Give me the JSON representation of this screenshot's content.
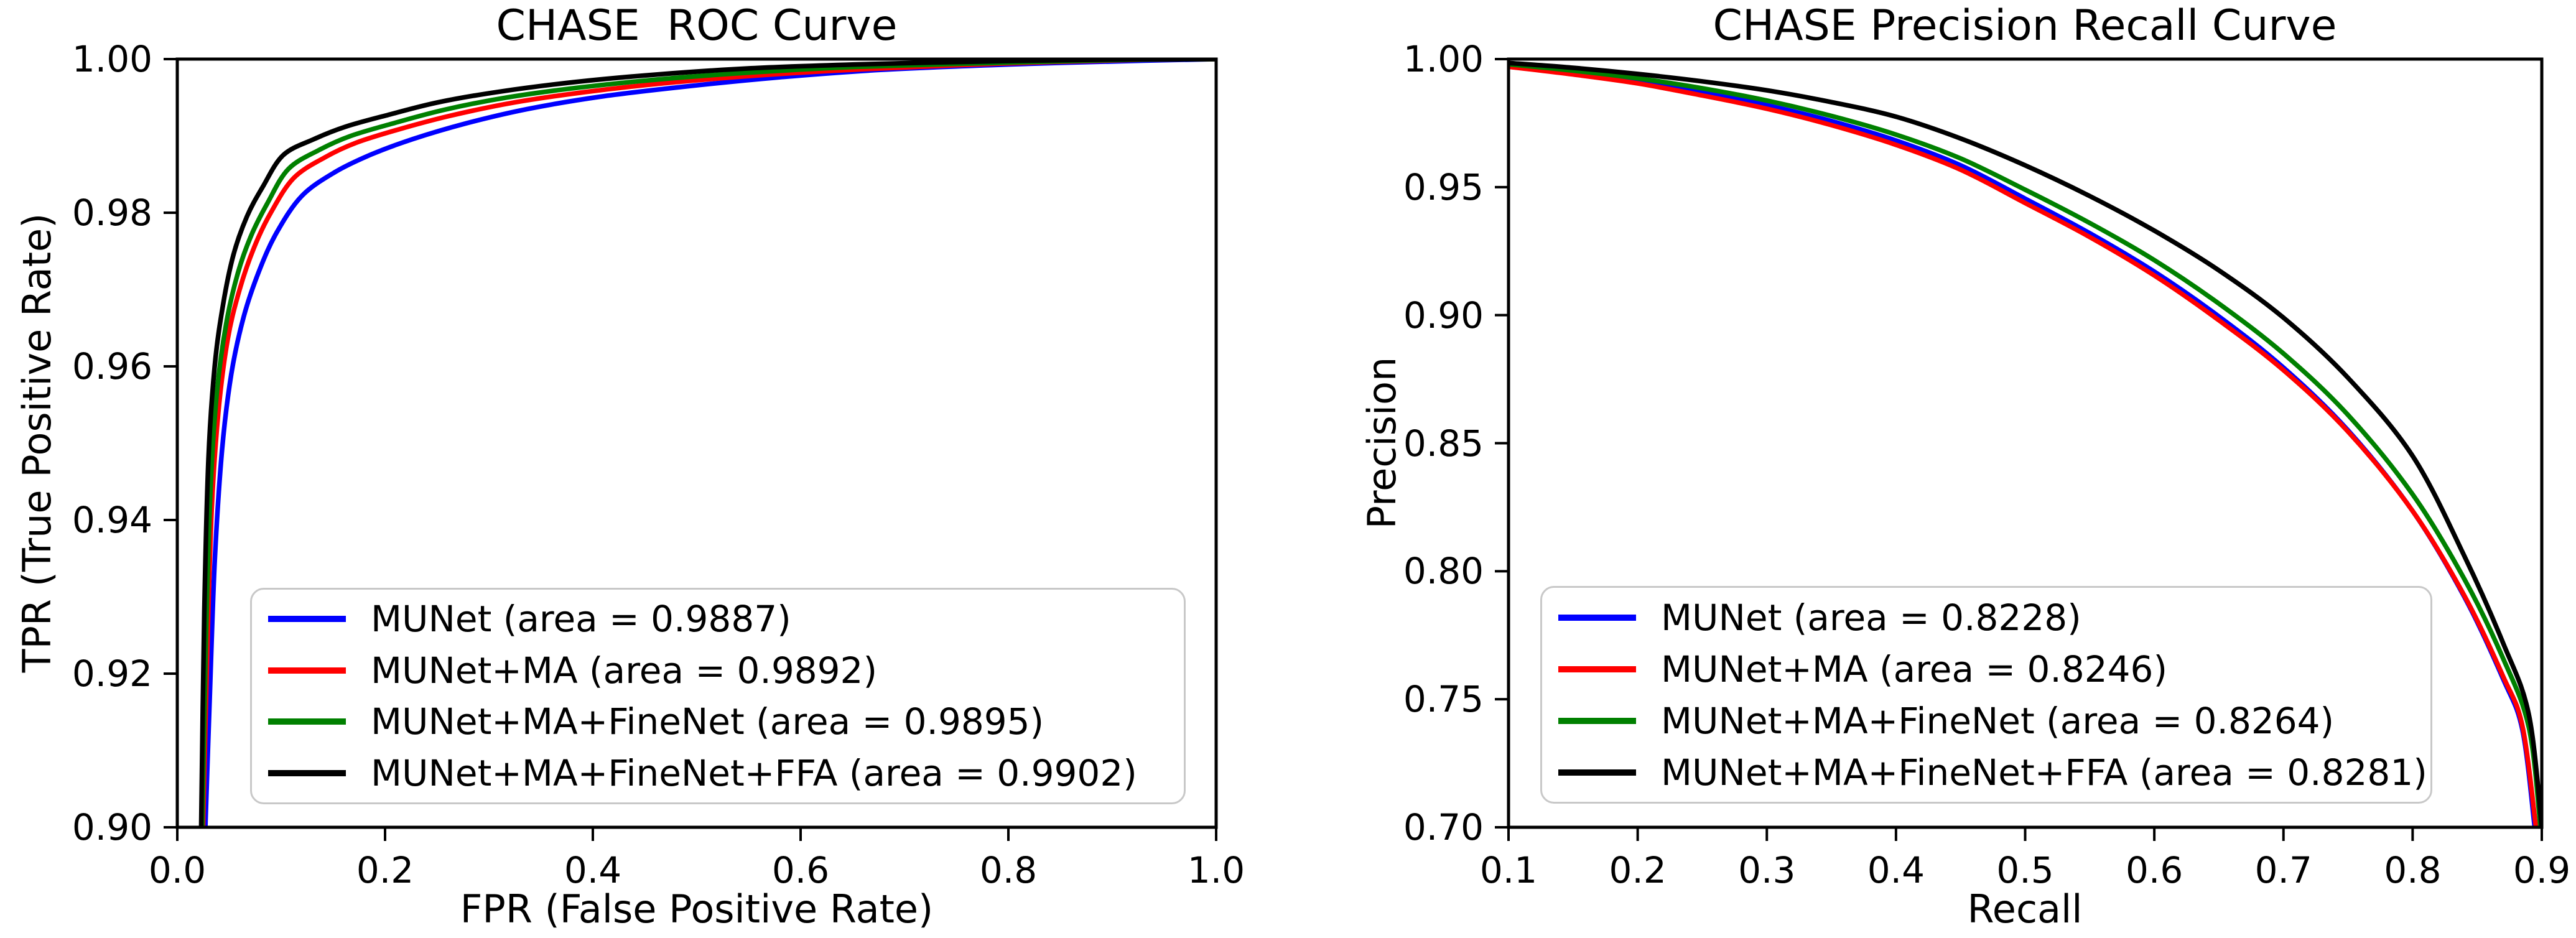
{
  "figure": {
    "background": "#ffffff",
    "frame_color": "#000000"
  },
  "chart_data": [
    {
      "type": "line",
      "title": "CHASE  ROC Curve",
      "xlabel": "FPR (False Positive Rate)",
      "ylabel": "TPR (True Positive Rate)",
      "xlim": [
        0.0,
        1.0
      ],
      "ylim": [
        0.9,
        1.0
      ],
      "xticks": {
        "values": [
          0.0,
          0.2,
          0.4,
          0.6,
          0.8,
          1.0
        ],
        "labels": [
          "0.0",
          "0.2",
          "0.4",
          "0.6",
          "0.8",
          "1.0"
        ]
      },
      "yticks": {
        "values": [
          0.9,
          0.92,
          0.94,
          0.96,
          0.98,
          1.0
        ],
        "labels": [
          "0.90",
          "0.92",
          "0.94",
          "0.96",
          "0.98",
          "1.00"
        ]
      },
      "grid": false,
      "legend_position": "lower left",
      "series": [
        {
          "id": "munet",
          "name": "MUNet",
          "label": "MUNet (area = 0.9887)",
          "area": 0.9887,
          "color": "#0000ff",
          "points": [
            [
              0.027,
              0.9
            ],
            [
              0.031,
              0.916
            ],
            [
              0.036,
              0.9345
            ],
            [
              0.043,
              0.949
            ],
            [
              0.052,
              0.959
            ],
            [
              0.064,
              0.9665
            ],
            [
              0.079,
              0.9725
            ],
            [
              0.096,
              0.9775
            ],
            [
              0.12,
              0.9822
            ],
            [
              0.152,
              0.9853
            ],
            [
              0.187,
              0.9876
            ],
            [
              0.227,
              0.9896
            ],
            [
              0.277,
              0.9916
            ],
            [
              0.337,
              0.9935
            ],
            [
              0.407,
              0.9951
            ],
            [
              0.487,
              0.9964
            ],
            [
              0.577,
              0.9976
            ],
            [
              0.677,
              0.9986
            ],
            [
              0.8,
              0.9993
            ],
            [
              0.93,
              0.9998
            ],
            [
              1.0,
              1.0
            ]
          ]
        },
        {
          "id": "munet-ma",
          "name": "MUNet+MA",
          "label": "MUNet+MA (area = 0.9892)",
          "area": 0.9892,
          "color": "#ff0000",
          "points": [
            [
              0.0248,
              0.9
            ],
            [
              0.0285,
              0.921
            ],
            [
              0.033,
              0.941
            ],
            [
              0.0395,
              0.954
            ],
            [
              0.0485,
              0.9635
            ],
            [
              0.06,
              0.97
            ],
            [
              0.074,
              0.9755
            ],
            [
              0.09,
              0.98
            ],
            [
              0.112,
              0.9845
            ],
            [
              0.142,
              0.9872
            ],
            [
              0.172,
              0.9891
            ],
            [
              0.212,
              0.9908
            ],
            [
              0.262,
              0.9926
            ],
            [
              0.322,
              0.9943
            ],
            [
              0.392,
              0.9957
            ],
            [
              0.472,
              0.9969
            ],
            [
              0.562,
              0.9979
            ],
            [
              0.662,
              0.9987
            ],
            [
              0.79,
              0.9994
            ],
            [
              0.92,
              0.9999
            ],
            [
              1.0,
              1.0
            ]
          ]
        },
        {
          "id": "munet-ma-finenet",
          "name": "MUNet+MA+FineNet",
          "label": "MUNet+MA+FineNet (area = 0.9895)",
          "area": 0.9895,
          "color": "#008000",
          "points": [
            [
              0.024,
              0.9
            ],
            [
              0.0275,
              0.924
            ],
            [
              0.032,
              0.944
            ],
            [
              0.038,
              0.9565
            ],
            [
              0.047,
              0.9655
            ],
            [
              0.058,
              0.972
            ],
            [
              0.071,
              0.977
            ],
            [
              0.087,
              0.9813
            ],
            [
              0.107,
              0.9857
            ],
            [
              0.137,
              0.9882
            ],
            [
              0.167,
              0.99
            ],
            [
              0.207,
              0.9916
            ],
            [
              0.257,
              0.9934
            ],
            [
              0.317,
              0.995
            ],
            [
              0.387,
              0.9963
            ],
            [
              0.467,
              0.9974
            ],
            [
              0.557,
              0.9983
            ],
            [
              0.657,
              0.999
            ],
            [
              0.785,
              0.9995
            ],
            [
              0.91,
              0.9999
            ],
            [
              1.0,
              1.0
            ]
          ]
        },
        {
          "id": "munet-ma-finenet-ffa",
          "name": "MUNet+MA+FineNet+FFA",
          "label": "MUNet+MA+FineNet+FFA (area = 0.9902)",
          "area": 0.9902,
          "color": "#000000",
          "points": [
            [
              0.023,
              0.9
            ],
            [
              0.026,
              0.928
            ],
            [
              0.03,
              0.948
            ],
            [
              0.036,
              0.96
            ],
            [
              0.044,
              0.968
            ],
            [
              0.054,
              0.9745
            ],
            [
              0.067,
              0.9795
            ],
            [
              0.082,
              0.9833
            ],
            [
              0.102,
              0.9875
            ],
            [
              0.132,
              0.9896
            ],
            [
              0.162,
              0.9912
            ],
            [
              0.202,
              0.9927
            ],
            [
              0.252,
              0.9944
            ],
            [
              0.312,
              0.9958
            ],
            [
              0.382,
              0.997
            ],
            [
              0.462,
              0.998
            ],
            [
              0.552,
              0.9988
            ],
            [
              0.652,
              0.9993
            ],
            [
              0.78,
              0.9997
            ],
            [
              0.9,
              0.99995
            ],
            [
              1.0,
              1.0
            ]
          ]
        }
      ]
    },
    {
      "type": "line",
      "title": "CHASE Precision Recall Curve",
      "xlabel": "Recall",
      "ylabel": "Precision",
      "xlim": [
        0.1,
        0.9
      ],
      "ylim": [
        0.7,
        1.0
      ],
      "xticks": {
        "values": [
          0.1,
          0.2,
          0.3,
          0.4,
          0.5,
          0.6,
          0.7,
          0.8,
          0.9
        ],
        "labels": [
          "0.1",
          "0.2",
          "0.3",
          "0.4",
          "0.5",
          "0.6",
          "0.7",
          "0.8",
          "0.9"
        ]
      },
      "yticks": {
        "values": [
          0.7,
          0.75,
          0.8,
          0.85,
          0.9,
          0.95,
          1.0
        ],
        "labels": [
          "0.70",
          "0.75",
          "0.80",
          "0.85",
          "0.90",
          "0.95",
          "1.00"
        ]
      },
      "grid": false,
      "legend_position": "lower left",
      "series": [
        {
          "id": "munet",
          "name": "MUNet",
          "label": "MUNet (area = 0.8228)",
          "area": 0.8228,
          "color": "#0000ff",
          "points": [
            [
              0.1,
              0.9972
            ],
            [
              0.15,
              0.9945
            ],
            [
              0.2,
              0.9912
            ],
            [
              0.25,
              0.987
            ],
            [
              0.3,
              0.982
            ],
            [
              0.35,
              0.9758
            ],
            [
              0.4,
              0.9682
            ],
            [
              0.45,
              0.9585
            ],
            [
              0.5,
              0.9455
            ],
            [
              0.55,
              0.932
            ],
            [
              0.6,
              0.917
            ],
            [
              0.65,
              0.8995
            ],
            [
              0.7,
              0.8795
            ],
            [
              0.75,
              0.855
            ],
            [
              0.8,
              0.8235
            ],
            [
              0.84,
              0.79
            ],
            [
              0.87,
              0.758
            ],
            [
              0.885,
              0.738
            ],
            [
              0.8945,
              0.7
            ]
          ]
        },
        {
          "id": "munet-ma",
          "name": "MUNet+MA",
          "label": "MUNet+MA (area = 0.8246)",
          "area": 0.8246,
          "color": "#ff0000",
          "points": [
            [
              0.1,
              0.997
            ],
            [
              0.15,
              0.994
            ],
            [
              0.2,
              0.9905
            ],
            [
              0.25,
              0.9858
            ],
            [
              0.3,
              0.9806
            ],
            [
              0.35,
              0.9742
            ],
            [
              0.4,
              0.9665
            ],
            [
              0.45,
              0.9568
            ],
            [
              0.5,
              0.9438
            ],
            [
              0.55,
              0.9305
            ],
            [
              0.6,
              0.9155
            ],
            [
              0.65,
              0.898
            ],
            [
              0.7,
              0.8785
            ],
            [
              0.75,
              0.8545
            ],
            [
              0.8,
              0.8235
            ],
            [
              0.84,
              0.7905
            ],
            [
              0.87,
              0.759
            ],
            [
              0.885,
              0.7395
            ],
            [
              0.8955,
              0.7
            ]
          ]
        },
        {
          "id": "munet-ma-finenet",
          "name": "MUNet+MA+FineNet",
          "label": "MUNet+MA+FineNet (area = 0.8264)",
          "area": 0.8264,
          "color": "#008000",
          "points": [
            [
              0.1,
              0.998
            ],
            [
              0.15,
              0.9955
            ],
            [
              0.2,
              0.9925
            ],
            [
              0.25,
              0.9886
            ],
            [
              0.3,
              0.9838
            ],
            [
              0.35,
              0.9778
            ],
            [
              0.4,
              0.9705
            ],
            [
              0.45,
              0.9612
            ],
            [
              0.5,
              0.949
            ],
            [
              0.55,
              0.936
            ],
            [
              0.6,
              0.9215
            ],
            [
              0.65,
              0.9045
            ],
            [
              0.7,
              0.885
            ],
            [
              0.75,
              0.861
            ],
            [
              0.8,
              0.83
            ],
            [
              0.84,
              0.797
            ],
            [
              0.87,
              0.766
            ],
            [
              0.89,
              0.739
            ],
            [
              0.899,
              0.7
            ]
          ]
        },
        {
          "id": "munet-ma-finenet-ffa",
          "name": "MUNet+MA+FineNet+FFA",
          "label": "MUNet+MA+FineNet+FFA (area = 0.8281)",
          "area": 0.8281,
          "color": "#000000",
          "points": [
            [
              0.1,
              0.9985
            ],
            [
              0.15,
              0.9966
            ],
            [
              0.2,
              0.9942
            ],
            [
              0.25,
              0.9913
            ],
            [
              0.3,
              0.9878
            ],
            [
              0.35,
              0.9832
            ],
            [
              0.4,
              0.9775
            ],
            [
              0.45,
              0.969
            ],
            [
              0.5,
              0.9585
            ],
            [
              0.55,
              0.9465
            ],
            [
              0.6,
              0.933
            ],
            [
              0.65,
              0.9175
            ],
            [
              0.7,
              0.899
            ],
            [
              0.75,
              0.8755
            ],
            [
              0.8,
              0.845
            ],
            [
              0.84,
              0.806
            ],
            [
              0.87,
              0.772
            ],
            [
              0.89,
              0.744
            ],
            [
              0.9,
              0.7
            ]
          ]
        }
      ]
    }
  ]
}
